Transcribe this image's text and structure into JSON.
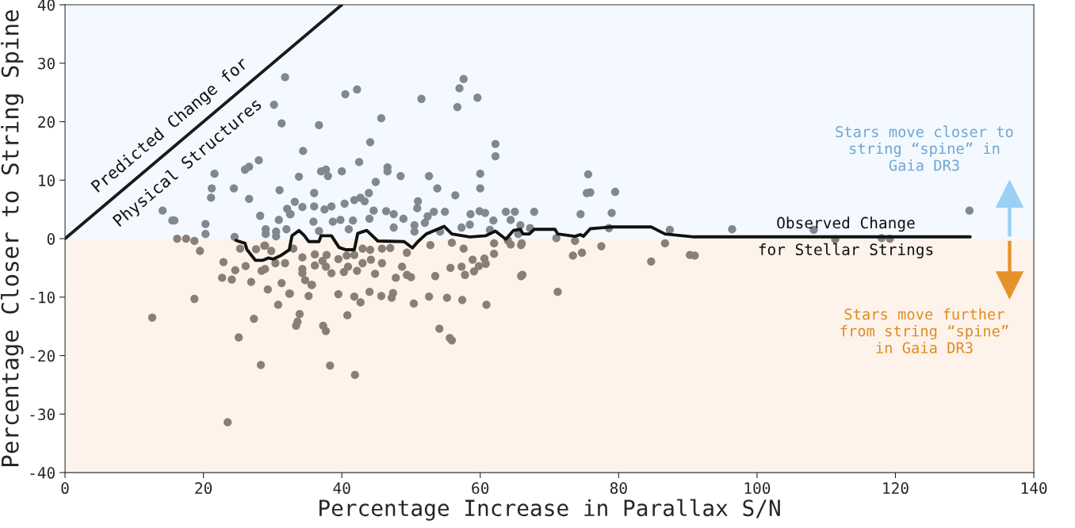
{
  "chart_data": {
    "type": "scatter",
    "xlabel": "Percentage Increase in Parallax S/N",
    "ylabel": "Percentage Closer to String Spine",
    "xlim": [
      0,
      140
    ],
    "ylim": [
      -40,
      40
    ],
    "xticks": [
      0,
      20,
      40,
      60,
      80,
      100,
      120,
      140
    ],
    "yticks": [
      -40,
      -30,
      -20,
      -10,
      0,
      10,
      20,
      30,
      40
    ],
    "grid": false,
    "legend": false,
    "marker": "circle",
    "bands": [
      {
        "axis": "y",
        "from": 0,
        "to": 40,
        "color": "#f3f9fe"
      },
      {
        "axis": "y",
        "from": -40,
        "to": 0,
        "color": "#fdf3ea"
      }
    ],
    "series": [
      {
        "color": "#808890",
        "x": [
          31.8,
          30.2,
          31.3,
          40.5,
          42.2,
          51.5,
          57.6,
          57,
          56.7,
          59.6,
          45.7,
          36.7,
          44.1,
          34.4,
          62.2,
          62.2,
          42.5,
          37,
          37.7,
          38,
          40,
          33.8,
          46.6,
          46.6,
          48.5,
          52.6,
          44.9,
          60,
          60,
          53.8,
          56.4,
          31,
          36,
          43.9,
          33.2,
          34.3,
          36,
          38.5,
          40.4,
          41.8,
          42.7,
          43.3,
          44.6,
          46.4,
          47.5,
          48.9,
          51,
          50.9,
          53.3,
          54.9,
          52.4,
          58.6,
          59.9,
          60.7,
          61.9,
          63.7,
          65,
          64.4,
          58.5,
          61.4,
          30.9,
          32.5,
          35.9,
          37.5,
          38.7,
          39.8,
          41.6,
          44,
          50.5,
          52,
          57.3,
          29,
          30.5,
          36.7,
          41,
          47.5,
          54.2,
          50.5,
          28,
          26.6,
          26,
          21.6,
          21.2,
          21.1,
          24.4,
          26.6,
          28.2,
          32.1,
          32.6,
          14.1,
          15.5,
          15.8,
          20.3,
          20.3,
          29,
          30.5,
          32,
          24.5,
          75.4,
          75.9,
          79.5,
          74.5,
          79,
          67.8,
          65.8,
          67.2,
          78.6,
          87.4,
          96.4,
          108.2,
          130.7,
          118,
          71,
          75.6,
          65.5
        ],
        "values": [
          27.6,
          22.9,
          19.7,
          24.7,
          25.5,
          23.9,
          27.3,
          25.7,
          22.5,
          24.1,
          20.6,
          19.4,
          16.5,
          15,
          16.2,
          14.1,
          13.1,
          11.5,
          11.8,
          10.7,
          11.5,
          10.6,
          12.2,
          11.5,
          10.7,
          10.7,
          9.7,
          11.1,
          8.6,
          8.6,
          7.4,
          8.3,
          7.8,
          7.8,
          6.3,
          5.4,
          5.5,
          5.5,
          6.0,
          6.6,
          7.0,
          6.4,
          4.8,
          4.7,
          4.2,
          3.4,
          6.4,
          5.2,
          4.6,
          4.6,
          3.8,
          4.2,
          4.7,
          4.4,
          3.1,
          4.6,
          4.6,
          3.2,
          2.4,
          1.5,
          3.2,
          4.2,
          2.9,
          5.0,
          2.9,
          3.2,
          3.1,
          3.4,
          2.3,
          2.7,
          1.9,
          1.6,
          1.2,
          1.3,
          1.6,
          1.9,
          1.2,
          1.2,
          13.4,
          12.3,
          11.8,
          11.1,
          8.6,
          7.0,
          8.6,
          6.8,
          3.9,
          5.1,
          4.2,
          4.8,
          3.1,
          3.1,
          2.5,
          0.8,
          0.8,
          0.4,
          1.6,
          0.3,
          7.8,
          7.9,
          8.0,
          4.2,
          4.4,
          4.6,
          2.3,
          1.8,
          1.8,
          1.5,
          1.6,
          1.5,
          4.8,
          0.1,
          0.1,
          11.0,
          0.8
        ]
      },
      {
        "color": "#8a7f75",
        "x": [
          16.2,
          17.5,
          18.7,
          19.5,
          18.7,
          12.6,
          27.3,
          25.1,
          28.3,
          23.5,
          22.7,
          22.9,
          24.1,
          24.6,
          26.1,
          26.9,
          29.3,
          31.3,
          32.4,
          30.8,
          33.9,
          33.6,
          33.4,
          35.2,
          35.7,
          34.3,
          36.1,
          36.1,
          34.3,
          31.8,
          28.4,
          27.6,
          28.9,
          25.3,
          32.5,
          39.5,
          37.3,
          37.7,
          40.8,
          38.3,
          41.9,
          41.8,
          42.7,
          44,
          45.7,
          47.2,
          47.4,
          50.4,
          52.6,
          55.2,
          57.4,
          60.9,
          54.1,
          55.6,
          55.9,
          47.8,
          44.8,
          42.2,
          40.3,
          38.5,
          37.7,
          34.3,
          34.7,
          35.6,
          39.5,
          40.9,
          43,
          44.2,
          45.8,
          48.7,
          49.4,
          50,
          53.5,
          55.7,
          57.3,
          57.8,
          59.1,
          59.8,
          60.8,
          60.6,
          58.9,
          62,
          65.9,
          49.4,
          47,
          45.8,
          55.9,
          57.6,
          52.8,
          62,
          65.9,
          30.4,
          28.9,
          37.8,
          37.2,
          40.7,
          41.8,
          43,
          44.1,
          33,
          28.8,
          29.8,
          111.3,
          119.2,
          64.4,
          73.7,
          66,
          77.5,
          86.7,
          73.4,
          74.7,
          90.3,
          91,
          84.7,
          66.1,
          71.2,
          64
        ],
        "values": [
          0,
          0,
          -0.4,
          -2.1,
          -10.3,
          -13.5,
          -13.7,
          -16.9,
          -21.6,
          -31.4,
          -6.7,
          -4.0,
          -7.0,
          -5.4,
          -4.7,
          -7.4,
          -8.7,
          -7.6,
          -9.4,
          -11.3,
          -12.9,
          -14.2,
          -14.9,
          -9.8,
          -7.9,
          -5.9,
          -4.6,
          -2.7,
          -3.2,
          -4.2,
          -5.5,
          -1.8,
          -1.2,
          -1.7,
          -9.4,
          -9.5,
          -14.9,
          -15.8,
          -13.1,
          -21.7,
          -23.3,
          -9.9,
          -10.9,
          -9.1,
          -9.8,
          -10.1,
          -9.3,
          -11.1,
          -9.9,
          -10.1,
          -10.5,
          -11.3,
          -15.4,
          -17,
          -17.4,
          -6.7,
          -6.0,
          -5.5,
          -5.7,
          -5.9,
          -4.8,
          -5.2,
          -7.1,
          -7.9,
          -3.5,
          -4.8,
          -4.2,
          -3.6,
          -4.2,
          -4.8,
          -6.2,
          -6.6,
          -6.4,
          -5.0,
          -4.8,
          -6.2,
          -5.6,
          -4.7,
          -4.3,
          -3.4,
          -3.6,
          -2.6,
          -6.4,
          -2.4,
          -1.6,
          -1.7,
          -0.7,
          -1.7,
          -1.1,
          -0.8,
          -1.1,
          -4.2,
          -5.2,
          -2.8,
          -3.8,
          -2.9,
          -2.8,
          -1.7,
          -1.9,
          -1.7,
          -1.2,
          -2.1,
          -0.1,
          0,
          -1.0,
          -0.4,
          -0.8,
          -1.3,
          -0.8,
          -2.9,
          -2.4,
          -2.8,
          -2.9,
          -3.9,
          -6.2,
          -9.1,
          -0.3
        ]
      },
      {
        "type": "line",
        "marker": "none",
        "color": "#111111",
        "x": [
          24.7,
          26,
          26.3,
          27.5,
          28.6,
          29.4,
          30.1,
          31.3,
          32.4,
          32.8,
          33.8,
          34.6,
          35.2,
          36.7,
          37,
          38.5,
          39.6,
          40.6,
          41.8,
          42.3,
          43.6,
          45.2,
          49,
          50.2,
          51,
          52.2,
          54.8,
          55.9,
          58.5,
          60.8,
          62.2,
          63.7,
          64.8,
          65.8,
          66.2,
          67.1,
          67.8,
          70.8,
          71.2,
          73.7,
          74.5,
          74.9,
          75.9,
          79,
          84.7,
          86.7,
          90.9,
          130.8
        ],
        "values": [
          -0.3,
          -0.8,
          -1.9,
          -3.7,
          -3.7,
          -3.3,
          -3.5,
          -2.8,
          -1.9,
          0.5,
          1.4,
          0.5,
          -0.5,
          -0.5,
          0.5,
          0.5,
          -1.5,
          -1.9,
          -1.9,
          0.9,
          1.4,
          -0.4,
          -0.5,
          -1.6,
          -0.5,
          0.8,
          2.1,
          0.8,
          0.3,
          0.5,
          1.3,
          -0.1,
          1.4,
          1.6,
          0.8,
          0.8,
          1.6,
          1.6,
          0.8,
          0.4,
          0.7,
          0.4,
          1.7,
          2.0,
          2.0,
          0.8,
          0.3,
          0.3
        ]
      },
      {
        "type": "line",
        "marker": "none",
        "color": "#1a1a1a",
        "x": [
          0,
          40
        ],
        "values": [
          0,
          40
        ]
      }
    ],
    "annotations": [
      "Predicted Change for",
      "Physical Structures",
      "Observed Change",
      "for Stellar Strings",
      "Stars move closer to\nstring “spine” in\nGaia DR3",
      "Stars move further\nfrom string “spine”\nin Gaia DR3"
    ]
  }
}
